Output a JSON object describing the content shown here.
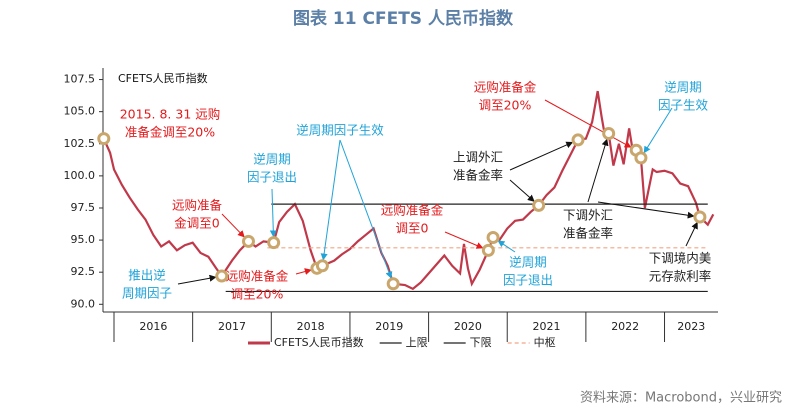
{
  "chart_data": {
    "type": "line",
    "title": "图表 11 CFETS 人民币指数",
    "source": "资料来源：Macrobond，兴业研究",
    "xlim": [
      2015.86,
      2023.68
    ],
    "ylim": [
      89.4,
      108.4
    ],
    "yticks": [
      {
        "value": 90,
        "label": "90.0"
      },
      {
        "value": 92.5,
        "label": "92.5"
      },
      {
        "value": 95,
        "label": "95.0"
      },
      {
        "value": 97.5,
        "label": "97.5"
      },
      {
        "value": 100,
        "label": "100.0"
      },
      {
        "value": 102.5,
        "label": "102.5"
      },
      {
        "value": 105,
        "label": "105.0"
      },
      {
        "value": 107.5,
        "label": "107.5"
      }
    ],
    "xticks": [
      2016,
      2017,
      2018,
      2019,
      2020,
      2021,
      2022,
      2023
    ],
    "series": [
      {
        "name": "CFETS人民币指数",
        "color": "#c0394a",
        "x": [
          2015.87,
          2015.95,
          2016.0,
          2016.1,
          2016.2,
          2016.3,
          2016.4,
          2016.5,
          2016.6,
          2016.7,
          2016.8,
          2016.9,
          2017.0,
          2017.1,
          2017.2,
          2017.3,
          2017.37,
          2017.5,
          2017.6,
          2017.71,
          2017.8,
          2017.9,
          2018.03,
          2018.1,
          2018.2,
          2018.3,
          2018.4,
          2018.5,
          2018.58,
          2018.65,
          2018.8,
          2018.9,
          2019.0,
          2019.1,
          2019.2,
          2019.3,
          2019.4,
          2019.48,
          2019.55,
          2019.7,
          2019.8,
          2019.9,
          2020.0,
          2020.1,
          2020.2,
          2020.3,
          2020.4,
          2020.45,
          2020.5,
          2020.55,
          2020.65,
          2020.76,
          2020.82,
          2020.9,
          2021.0,
          2021.1,
          2021.2,
          2021.3,
          2021.4,
          2021.5,
          2021.6,
          2021.7,
          2021.8,
          2021.9,
          2022.0,
          2022.08,
          2022.15,
          2022.2,
          2022.24,
          2022.29,
          2022.35,
          2022.42,
          2022.48,
          2022.55,
          2022.6,
          2022.64,
          2022.7,
          2022.75,
          2022.8,
          2022.85,
          2022.9,
          2023.0,
          2023.1,
          2023.2,
          2023.3,
          2023.4,
          2023.45,
          2023.55,
          2023.62
        ],
        "values": [
          102.9,
          101.8,
          100.5,
          99.3,
          98.3,
          97.4,
          96.6,
          95.4,
          94.5,
          94.9,
          94.2,
          94.6,
          94.8,
          94.0,
          93.7,
          92.8,
          92.2,
          93.4,
          94.2,
          94.9,
          94.5,
          94.9,
          94.8,
          96.4,
          97.2,
          97.8,
          96.5,
          94.2,
          92.8,
          93.0,
          93.4,
          93.9,
          94.3,
          94.9,
          95.4,
          95.9,
          94.0,
          93.0,
          91.6,
          91.5,
          91.2,
          91.7,
          92.4,
          93.1,
          93.8,
          93.0,
          92.4,
          94.7,
          92.8,
          91.6,
          92.7,
          94.2,
          95.2,
          95.0,
          95.9,
          96.5,
          96.6,
          97.2,
          97.7,
          98.5,
          99.1,
          100.4,
          101.6,
          102.8,
          102.9,
          104.2,
          106.6,
          104.6,
          103.2,
          103.3,
          100.8,
          102.5,
          100.9,
          103.7,
          101.8,
          102.0,
          101.4,
          97.5,
          99.0,
          100.5,
          100.3,
          100.4,
          100.2,
          99.4,
          99.2,
          97.9,
          96.8,
          96.2,
          97.0
        ]
      },
      {
        "name": "上限",
        "color": "#222222",
        "x": [
          2018.0,
          2023.55
        ],
        "values": [
          97.8,
          97.8
        ]
      },
      {
        "name": "下限",
        "color": "#222222",
        "x": [
          2017.42,
          2023.55
        ],
        "values": [
          91.0,
          91.0
        ]
      },
      {
        "name": "中枢",
        "color": "#f4a582",
        "dashed": true,
        "x": [
          2017.95,
          2023.55
        ],
        "values": [
          94.4,
          94.4
        ]
      }
    ],
    "markers": {
      "color": "#c9a66b",
      "x": [
        2015.87,
        2017.37,
        2017.71,
        2018.03,
        2018.58,
        2018.65,
        2019.55,
        2020.76,
        2020.82,
        2021.4,
        2021.9,
        2022.29,
        2022.64,
        2022.7,
        2023.45
      ],
      "values": [
        102.9,
        92.2,
        94.9,
        94.8,
        92.8,
        93.0,
        91.6,
        94.2,
        95.2,
        97.7,
        102.8,
        103.3,
        102.0,
        101.4,
        96.8
      ]
    },
    "annotations": [
      {
        "lines": [
          "2015. 8. 31  远购",
          "准备金调至20%"
        ],
        "color": "#e41a1c"
      },
      {
        "lines": [
          "推出逆",
          "周期因子"
        ],
        "color": "#1fa3d8"
      },
      {
        "lines": [
          "远购准备",
          "金调至0"
        ],
        "color": "#e41a1c"
      },
      {
        "lines": [
          "逆周期",
          "因子退出"
        ],
        "color": "#1fa3d8"
      },
      {
        "lines": [
          "远购准备金",
          "调至20%"
        ],
        "color": "#e41a1c"
      },
      {
        "lines": [
          "逆周期因子生效"
        ],
        "color": "#1fa3d8"
      },
      {
        "lines": [
          "远购准备金",
          "调至0"
        ],
        "color": "#e41a1c"
      },
      {
        "lines": [
          "逆周期",
          "因子退出"
        ],
        "color": "#1fa3d8"
      },
      {
        "lines": [
          "上调外汇",
          "准备金率"
        ],
        "color": "#222222"
      },
      {
        "lines": [
          "远购准备金",
          "调至20%"
        ],
        "color": "#e41a1c"
      },
      {
        "lines": [
          "逆周期",
          "因子生效"
        ],
        "color": "#1fa3d8"
      },
      {
        "lines": [
          "下调外汇",
          "准备金率"
        ],
        "color": "#222222"
      },
      {
        "lines": [
          "下调境内美",
          "元存款利率"
        ],
        "color": "#222222"
      }
    ]
  }
}
